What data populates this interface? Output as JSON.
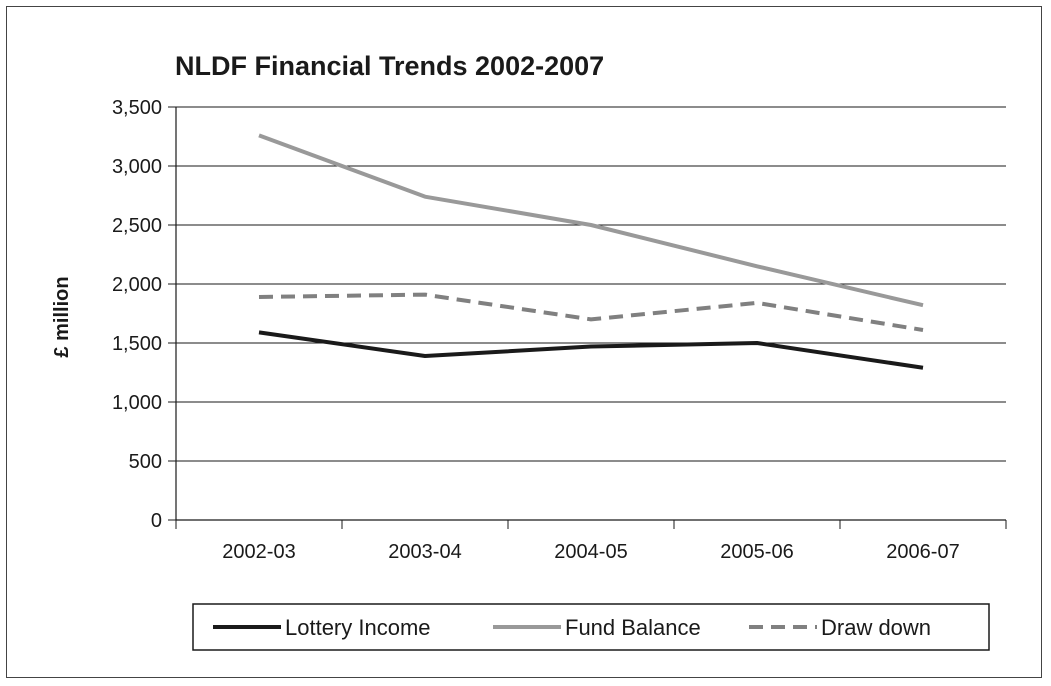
{
  "chart_data": {
    "type": "line",
    "title": "NLDF Financial Trends 2002-2007",
    "xlabel": "",
    "ylabel": "£ million",
    "categories": [
      "2002-03",
      "2003-04",
      "2004-05",
      "2005-06",
      "2006-07"
    ],
    "ylim": [
      0,
      3500
    ],
    "yticks": [
      0,
      500,
      1000,
      1500,
      2000,
      2500,
      3000,
      3500
    ],
    "ytick_labels": [
      "0",
      "500",
      "1,000",
      "1,500",
      "2,000",
      "2,500",
      "3,000",
      "3,500"
    ],
    "grid": true,
    "legend_position": "bottom",
    "series": [
      {
        "name": "Lottery Income",
        "values": [
          1590,
          1390,
          1470,
          1500,
          1290
        ],
        "color": "#1a1a1a",
        "dash": "solid"
      },
      {
        "name": "Fund Balance",
        "values": [
          3260,
          2740,
          2500,
          2150,
          1820
        ],
        "color": "#999999",
        "dash": "solid"
      },
      {
        "name": "Draw down",
        "values": [
          1890,
          1910,
          1700,
          1840,
          1610
        ],
        "color": "#808080",
        "dash": "dashed"
      }
    ]
  }
}
